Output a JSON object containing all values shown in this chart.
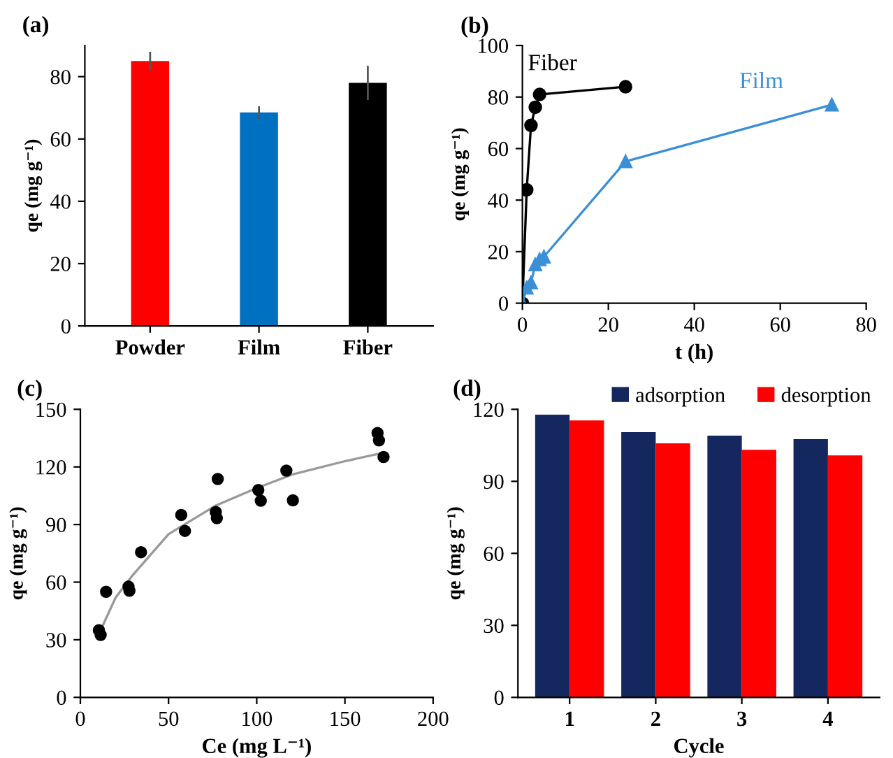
{
  "chart_data": [
    {
      "type": "bar",
      "title": "(a)",
      "ylabel": "qe (mg g⁻¹)",
      "categories": [
        "Powder",
        "Film",
        "Fiber"
      ],
      "values": [
        85,
        68.5,
        78
      ],
      "colors": [
        "#ff0000",
        "#0070c0",
        "#000000"
      ],
      "errors": [
        3,
        2,
        5.5
      ],
      "ylim": [
        0,
        90
      ],
      "yticks": [
        0,
        20,
        40,
        60,
        80
      ],
      "grid": false,
      "legend": false
    },
    {
      "type": "line",
      "title": "(b)",
      "xlabel": "t (h)",
      "ylabel": "qe (mg g⁻¹)",
      "xlim": [
        0,
        80
      ],
      "xticks": [
        0,
        20,
        40,
        60,
        80
      ],
      "ylim": [
        0,
        100
      ],
      "yticks": [
        0,
        20,
        40,
        60,
        80,
        100
      ],
      "grid": false,
      "legend": false,
      "series": [
        {
          "name": "Fiber",
          "color": "#000000",
          "marker": "circle",
          "x": [
            0,
            1,
            2,
            3,
            4,
            24
          ],
          "values": [
            0,
            44,
            69,
            76,
            81,
            84
          ]
        },
        {
          "name": "Film",
          "color": "#3a8fd6",
          "marker": "triangle",
          "x": [
            0,
            1,
            2,
            3,
            4,
            5,
            24,
            72
          ],
          "values": [
            0,
            6,
            8,
            15,
            17,
            18,
            55,
            77
          ]
        }
      ]
    },
    {
      "type": "scatter",
      "title": "(c)",
      "xlabel": "Ce (mg L⁻¹)",
      "ylabel": "qe (mg g⁻¹)",
      "xlim": [
        0,
        200
      ],
      "xticks": [
        0,
        50,
        100,
        150,
        200
      ],
      "ylim": [
        0,
        150
      ],
      "yticks": [
        0,
        30,
        60,
        90,
        120,
        150
      ],
      "grid": false,
      "legend": false,
      "series": [
        {
          "color": "#000000",
          "marker": "circle",
          "x": [
            10.5,
            11.5,
            14.6,
            27.3,
            27.8,
            34.4,
            57.2,
            59.3,
            76.8,
            77.4,
            77.9,
            100.9,
            102.3,
            116.8,
            120.5,
            168.5,
            169.3,
            171.9
          ],
          "values": [
            35,
            32.5,
            55,
            57.7,
            55.5,
            75.6,
            95,
            86.7,
            96.5,
            93.3,
            113.7,
            108,
            102.4,
            118.1,
            102.6,
            137.7,
            133.8,
            125.2
          ]
        },
        {
          "type": "line",
          "color": "#999999",
          "marker": "none",
          "x": [
            12,
            20,
            30,
            50,
            77,
            100,
            120,
            150,
            170
          ],
          "values": [
            36,
            52,
            64,
            85,
            100,
            109,
            116,
            123,
            127
          ]
        }
      ]
    },
    {
      "type": "bar",
      "title": "(d)",
      "xlabel": "Cycle",
      "ylabel": "qe (mg g⁻¹)",
      "categories": [
        "1",
        "2",
        "3",
        "4"
      ],
      "ylim": [
        0,
        120
      ],
      "yticks": [
        0,
        30,
        60,
        90,
        120
      ],
      "grid": false,
      "legend": "top right",
      "series": [
        {
          "name": "adsorption",
          "color": "#14275e",
          "values": [
            117.8,
            110.5,
            109,
            107.6
          ]
        },
        {
          "name": "desorption",
          "color": "#ff0000",
          "values": [
            115.4,
            105.8,
            103.1,
            100.8
          ]
        }
      ]
    }
  ]
}
